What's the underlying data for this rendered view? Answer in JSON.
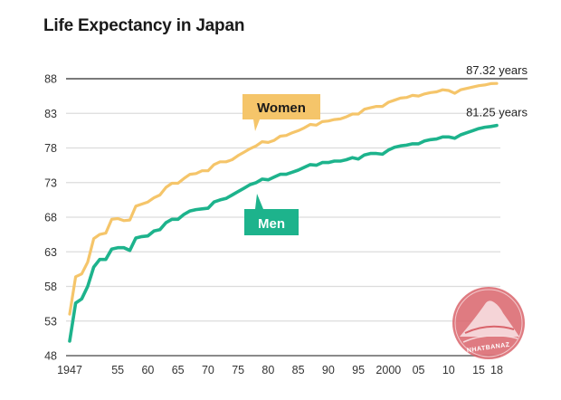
{
  "chart_data": {
    "type": "line",
    "title": "Life Expectancy in Japan",
    "xlabel": "",
    "ylabel": "",
    "xlim": [
      1947,
      2018
    ],
    "ylim": [
      48,
      88
    ],
    "grid": true,
    "y_ticks": [
      48,
      53,
      58,
      63,
      68,
      73,
      78,
      83,
      88
    ],
    "y_tick_labels": [
      "48",
      "53",
      "58",
      "63",
      "68",
      "73",
      "78",
      "83",
      "88"
    ],
    "x_ticks": [
      1947,
      1955,
      1960,
      1965,
      1970,
      1975,
      1980,
      1985,
      1990,
      1995,
      2000,
      2005,
      2010,
      2015,
      2018
    ],
    "x_tick_labels": [
      "1947",
      "55",
      "60",
      "65",
      "70",
      "75",
      "80",
      "85",
      "90",
      "95",
      "2000",
      "05",
      "10",
      "15",
      "18"
    ],
    "series": [
      {
        "name": "Women",
        "color": "#f5c56a",
        "label_text_color": "#1a1a1a",
        "end_label": "87.32 years",
        "x": [
          1947,
          1948,
          1949,
          1950,
          1951,
          1952,
          1953,
          1954,
          1955,
          1956,
          1957,
          1958,
          1959,
          1960,
          1961,
          1962,
          1963,
          1964,
          1965,
          1966,
          1967,
          1968,
          1969,
          1970,
          1971,
          1972,
          1973,
          1974,
          1975,
          1976,
          1977,
          1978,
          1979,
          1980,
          1981,
          1982,
          1983,
          1984,
          1985,
          1986,
          1987,
          1988,
          1989,
          1990,
          1991,
          1992,
          1993,
          1994,
          1995,
          1996,
          1997,
          1998,
          1999,
          2000,
          2001,
          2002,
          2003,
          2004,
          2005,
          2006,
          2007,
          2008,
          2009,
          2010,
          2011,
          2012,
          2013,
          2014,
          2015,
          2016,
          2017,
          2018
        ],
        "values": [
          54.0,
          59.4,
          59.8,
          61.5,
          64.9,
          65.5,
          65.7,
          67.7,
          67.8,
          67.5,
          67.6,
          69.6,
          69.9,
          70.2,
          70.8,
          71.2,
          72.3,
          72.9,
          72.9,
          73.6,
          74.2,
          74.3,
          74.7,
          74.7,
          75.6,
          76.0,
          76.0,
          76.3,
          76.9,
          77.4,
          77.9,
          78.3,
          78.9,
          78.8,
          79.1,
          79.7,
          79.8,
          80.2,
          80.5,
          80.9,
          81.4,
          81.3,
          81.8,
          81.9,
          82.1,
          82.2,
          82.5,
          82.9,
          82.9,
          83.6,
          83.8,
          84.0,
          84.0,
          84.6,
          84.9,
          85.2,
          85.3,
          85.6,
          85.5,
          85.8,
          86.0,
          86.1,
          86.4,
          86.3,
          85.9,
          86.4,
          86.6,
          86.8,
          87.0,
          87.1,
          87.3,
          87.32
        ]
      },
      {
        "name": "Men",
        "color": "#1db38c",
        "label_text_color": "#ffffff",
        "end_label": "81.25 years",
        "x": [
          1947,
          1948,
          1949,
          1950,
          1951,
          1952,
          1953,
          1954,
          1955,
          1956,
          1957,
          1958,
          1959,
          1960,
          1961,
          1962,
          1963,
          1964,
          1965,
          1966,
          1967,
          1968,
          1969,
          1970,
          1971,
          1972,
          1973,
          1974,
          1975,
          1976,
          1977,
          1978,
          1979,
          1980,
          1981,
          1982,
          1983,
          1984,
          1985,
          1986,
          1987,
          1988,
          1989,
          1990,
          1991,
          1992,
          1993,
          1994,
          1995,
          1996,
          1997,
          1998,
          1999,
          2000,
          2001,
          2002,
          2003,
          2004,
          2005,
          2006,
          2007,
          2008,
          2009,
          2010,
          2011,
          2012,
          2013,
          2014,
          2015,
          2016,
          2017,
          2018
        ],
        "values": [
          50.1,
          55.6,
          56.2,
          58.0,
          60.8,
          61.9,
          61.9,
          63.4,
          63.6,
          63.6,
          63.2,
          65.0,
          65.2,
          65.3,
          66.0,
          66.2,
          67.2,
          67.7,
          67.7,
          68.4,
          68.9,
          69.1,
          69.2,
          69.3,
          70.2,
          70.5,
          70.7,
          71.2,
          71.7,
          72.2,
          72.7,
          73.0,
          73.5,
          73.4,
          73.8,
          74.2,
          74.2,
          74.5,
          74.8,
          75.2,
          75.6,
          75.5,
          75.9,
          75.9,
          76.1,
          76.1,
          76.3,
          76.6,
          76.4,
          77.0,
          77.2,
          77.2,
          77.1,
          77.7,
          78.1,
          78.3,
          78.4,
          78.6,
          78.6,
          79.0,
          79.2,
          79.3,
          79.6,
          79.6,
          79.4,
          79.9,
          80.2,
          80.5,
          80.8,
          81.0,
          81.1,
          81.25
        ]
      }
    ],
    "legend": {
      "type": "callouts",
      "women_label": "Women",
      "men_label": "Men"
    }
  },
  "watermark": {
    "text": "NHATBANAZ",
    "color": "#d9646b"
  }
}
